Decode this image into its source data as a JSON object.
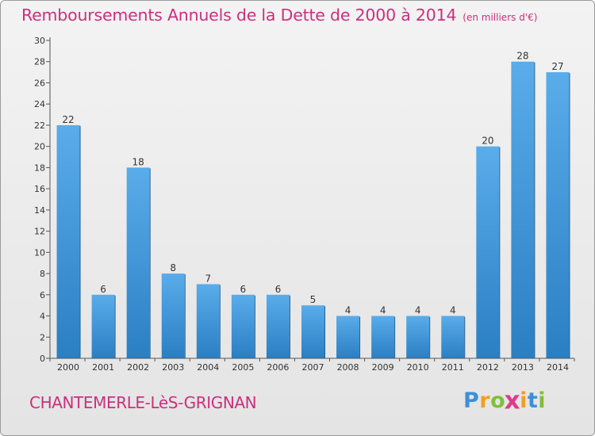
{
  "title": "Remboursements Annuels de la Dette de 2000 à 2014",
  "unit": "(en milliers d'€)",
  "commune": "CHANTEMERLE-LèS-GRIGNAN",
  "logo": {
    "letters": [
      "P",
      "r",
      "o",
      "x",
      "i",
      "t",
      "i"
    ],
    "colors": [
      "#3f8fd6",
      "#f0a020",
      "#7fbf3a",
      "#e23a8a",
      "#f0a020",
      "#3f8fd6",
      "#7fbf3a"
    ]
  },
  "colors": {
    "bar_light": "#5aacea",
    "bar_dark": "#2a7fc3",
    "axis": "#555555",
    "title": "#cc2f7e"
  },
  "chart_data": {
    "type": "bar",
    "title": "Remboursements Annuels de la Dette de 2000 à 2014",
    "ylabel": "en milliers d'€",
    "xlabel": "",
    "categories": [
      "2000",
      "2001",
      "2002",
      "2003",
      "2004",
      "2005",
      "2006",
      "2007",
      "2008",
      "2009",
      "2010",
      "2011",
      "2012",
      "2013",
      "2014"
    ],
    "values": [
      22,
      6,
      18,
      8,
      7,
      6,
      6,
      5,
      4,
      4,
      4,
      4,
      20,
      28,
      27
    ],
    "ylim": [
      0,
      30
    ],
    "yticks": [
      0,
      2,
      4,
      6,
      8,
      10,
      12,
      14,
      16,
      18,
      20,
      22,
      24,
      26,
      28,
      30
    ],
    "grid": false
  }
}
